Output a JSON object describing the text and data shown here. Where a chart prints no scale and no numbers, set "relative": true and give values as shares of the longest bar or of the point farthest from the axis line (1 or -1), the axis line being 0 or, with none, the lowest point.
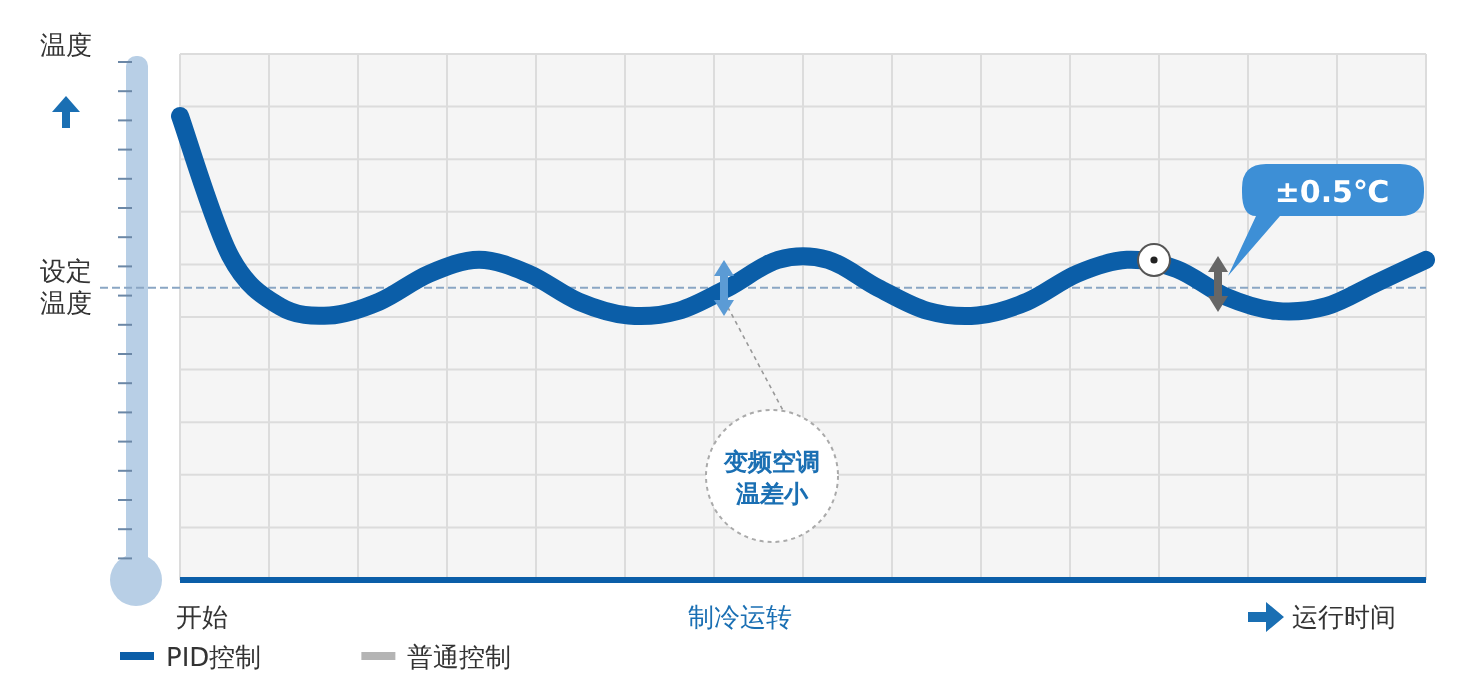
{
  "chart_data": {
    "type": "line",
    "relative": true,
    "ylabel": "温度",
    "xlabel": "运行时间",
    "grid": true,
    "legend": "bottom left",
    "line_style": "solid",
    "categories": [
      null,
      null,
      null,
      null,
      null,
      null,
      null,
      null,
      null,
      null,
      null,
      null,
      null,
      null,
      null,
      null,
      null,
      null,
      null,
      null,
      null,
      null,
      null,
      null,
      null,
      null
    ],
    "series": [
      {
        "name": "PID控制",
        "color": "#0b5ea8",
        "values": [
          1.0,
          0.7,
          0.59,
          0.57,
          0.6,
          0.66,
          0.69,
          0.66,
          0.6,
          0.57,
          0.58,
          0.63,
          0.69,
          0.69,
          0.63,
          0.58,
          0.57,
          0.6,
          0.66,
          0.69,
          0.67,
          0.61,
          0.58,
          0.59,
          0.64,
          0.69
        ]
      },
      {
        "name": "普通控制",
        "color": "#b4b4b4",
        "values": [
          null,
          null,
          null,
          null,
          null,
          null,
          null,
          null,
          null,
          null,
          null,
          null,
          null,
          null,
          null,
          null,
          null,
          null,
          null,
          null,
          null,
          null,
          null,
          null,
          null,
          null
        ]
      }
    ],
    "ref_lines": [
      {
        "axis": "y",
        "value": 0.63,
        "label": "设定温度",
        "color": "#8aa6c4",
        "line_style": "dashed"
      }
    ],
    "annotations": [
      "开始",
      "制冷运转",
      "变频空调温差小",
      "±0.5℃"
    ]
  }
}
